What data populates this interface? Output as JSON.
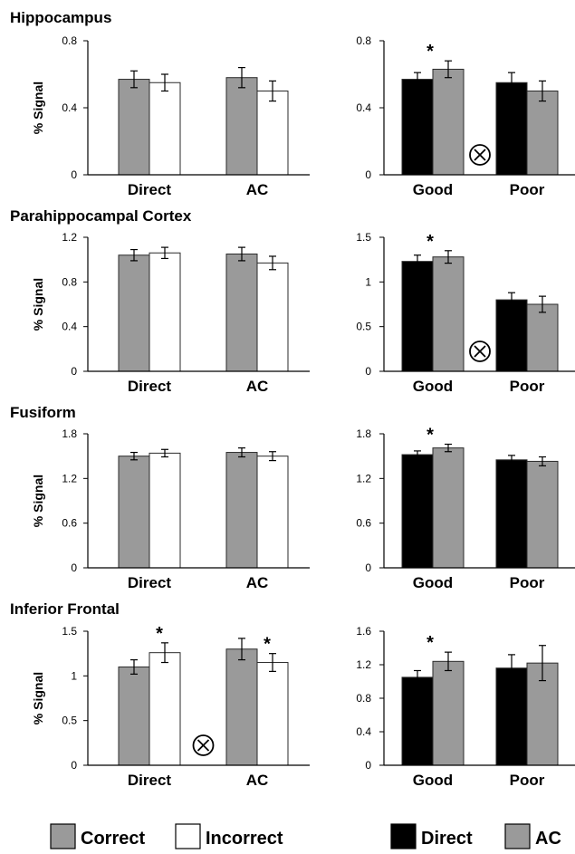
{
  "ylabel": "% Signal",
  "interaction_symbol": "⊗",
  "significance_symbol": "*",
  "colors": {
    "Correct": "#9a9a9a",
    "Incorrect": "#ffffff",
    "Direct": "#000000",
    "AC": "#9a9a9a"
  },
  "legends": [
    {
      "panel": "left",
      "entries": [
        "Correct",
        "Incorrect"
      ]
    },
    {
      "panel": "right",
      "entries": [
        "Direct",
        "AC"
      ]
    }
  ],
  "rows": [
    {
      "title": "Hippocampus"
    },
    {
      "title": "Parahippocampal Cortex"
    },
    {
      "title": "Fusiform"
    },
    {
      "title": "Inferior Frontal"
    }
  ],
  "chart_data": [
    {
      "type": "bar",
      "row": 0,
      "panel": "left",
      "categories": [
        "Direct",
        "AC"
      ],
      "ylabel": "% Signal",
      "ylim": [
        0,
        0.8
      ],
      "yticks": [
        0,
        0.4,
        0.8
      ],
      "ytick_labels": [
        "0",
        "0.4",
        "0.8"
      ],
      "series": [
        {
          "name": "Correct",
          "values": [
            0.57,
            0.58
          ],
          "errors": [
            0.05,
            0.06
          ]
        },
        {
          "name": "Incorrect",
          "values": [
            0.55,
            0.5
          ],
          "errors": [
            0.05,
            0.06
          ]
        }
      ],
      "significance": [],
      "interaction": false
    },
    {
      "type": "bar",
      "row": 0,
      "panel": "right",
      "categories": [
        "Good",
        "Poor"
      ],
      "ylim": [
        0,
        0.8
      ],
      "yticks": [
        0,
        0.4,
        0.8
      ],
      "ytick_labels": [
        "0",
        "0.4",
        "0.8"
      ],
      "series": [
        {
          "name": "Direct",
          "values": [
            0.57,
            0.55
          ],
          "errors": [
            0.04,
            0.06
          ]
        },
        {
          "name": "AC",
          "values": [
            0.63,
            0.5
          ],
          "errors": [
            0.05,
            0.06
          ]
        }
      ],
      "significance": [
        0
      ],
      "interaction": true
    },
    {
      "type": "bar",
      "row": 1,
      "panel": "left",
      "categories": [
        "Direct",
        "AC"
      ],
      "ylabel": "% Signal",
      "ylim": [
        0,
        1.2
      ],
      "yticks": [
        0,
        0.4,
        0.8,
        1.2
      ],
      "ytick_labels": [
        "0",
        "0.4",
        "0.8",
        "1.2"
      ],
      "series": [
        {
          "name": "Correct",
          "values": [
            1.04,
            1.05
          ],
          "errors": [
            0.05,
            0.06
          ]
        },
        {
          "name": "Incorrect",
          "values": [
            1.06,
            0.97
          ],
          "errors": [
            0.05,
            0.06
          ]
        }
      ],
      "significance": [],
      "interaction": false
    },
    {
      "type": "bar",
      "row": 1,
      "panel": "right",
      "categories": [
        "Good",
        "Poor"
      ],
      "ylim": [
        0,
        1.5
      ],
      "yticks": [
        0,
        0.5,
        1,
        1.5
      ],
      "ytick_labels": [
        "0",
        "0.5",
        "1",
        "1.5"
      ],
      "series": [
        {
          "name": "Direct",
          "values": [
            1.23,
            0.8
          ],
          "errors": [
            0.07,
            0.08
          ]
        },
        {
          "name": "AC",
          "values": [
            1.28,
            0.75
          ],
          "errors": [
            0.07,
            0.09
          ]
        }
      ],
      "significance": [
        0
      ],
      "interaction": true
    },
    {
      "type": "bar",
      "row": 2,
      "panel": "left",
      "categories": [
        "Direct",
        "AC"
      ],
      "ylabel": "% Signal",
      "ylim": [
        0,
        1.8
      ],
      "yticks": [
        0,
        0.6,
        1.2,
        1.8
      ],
      "ytick_labels": [
        "0",
        "0.6",
        "1.2",
        "1.8"
      ],
      "series": [
        {
          "name": "Correct",
          "values": [
            1.5,
            1.55
          ],
          "errors": [
            0.05,
            0.06
          ]
        },
        {
          "name": "Incorrect",
          "values": [
            1.54,
            1.5
          ],
          "errors": [
            0.05,
            0.06
          ]
        }
      ],
      "significance": [],
      "interaction": false
    },
    {
      "type": "bar",
      "row": 2,
      "panel": "right",
      "categories": [
        "Good",
        "Poor"
      ],
      "ylim": [
        0,
        1.8
      ],
      "yticks": [
        0,
        0.6,
        1.2,
        1.8
      ],
      "ytick_labels": [
        "0",
        "0.6",
        "1.2",
        "1.8"
      ],
      "series": [
        {
          "name": "Direct",
          "values": [
            1.52,
            1.45
          ],
          "errors": [
            0.05,
            0.06
          ]
        },
        {
          "name": "AC",
          "values": [
            1.61,
            1.43
          ],
          "errors": [
            0.05,
            0.06
          ]
        }
      ],
      "significance": [
        0
      ],
      "interaction": false
    },
    {
      "type": "bar",
      "row": 3,
      "panel": "left",
      "categories": [
        "Direct",
        "AC"
      ],
      "ylabel": "% Signal",
      "ylim": [
        0,
        1.5
      ],
      "yticks": [
        0,
        0.5,
        1,
        1.5
      ],
      "ytick_labels": [
        "0",
        "0.5",
        "1",
        "1.5"
      ],
      "series": [
        {
          "name": "Correct",
          "values": [
            1.1,
            1.3
          ],
          "errors": [
            0.08,
            0.12
          ]
        },
        {
          "name": "Incorrect",
          "values": [
            1.26,
            1.15
          ],
          "errors": [
            0.11,
            0.1
          ]
        }
      ],
      "significance": [
        0,
        1
      ],
      "interaction": true
    },
    {
      "type": "bar",
      "row": 3,
      "panel": "right",
      "categories": [
        "Good",
        "Poor"
      ],
      "ylim": [
        0,
        1.6
      ],
      "yticks": [
        0,
        0.4,
        0.8,
        1.2,
        1.6
      ],
      "ytick_labels": [
        "0",
        "0.4",
        "0.8",
        "1.2",
        "1.6"
      ],
      "series": [
        {
          "name": "Direct",
          "values": [
            1.05,
            1.16
          ],
          "errors": [
            0.08,
            0.16
          ]
        },
        {
          "name": "AC",
          "values": [
            1.24,
            1.22
          ],
          "errors": [
            0.11,
            0.21
          ]
        }
      ],
      "significance": [
        0
      ],
      "interaction": false
    }
  ]
}
